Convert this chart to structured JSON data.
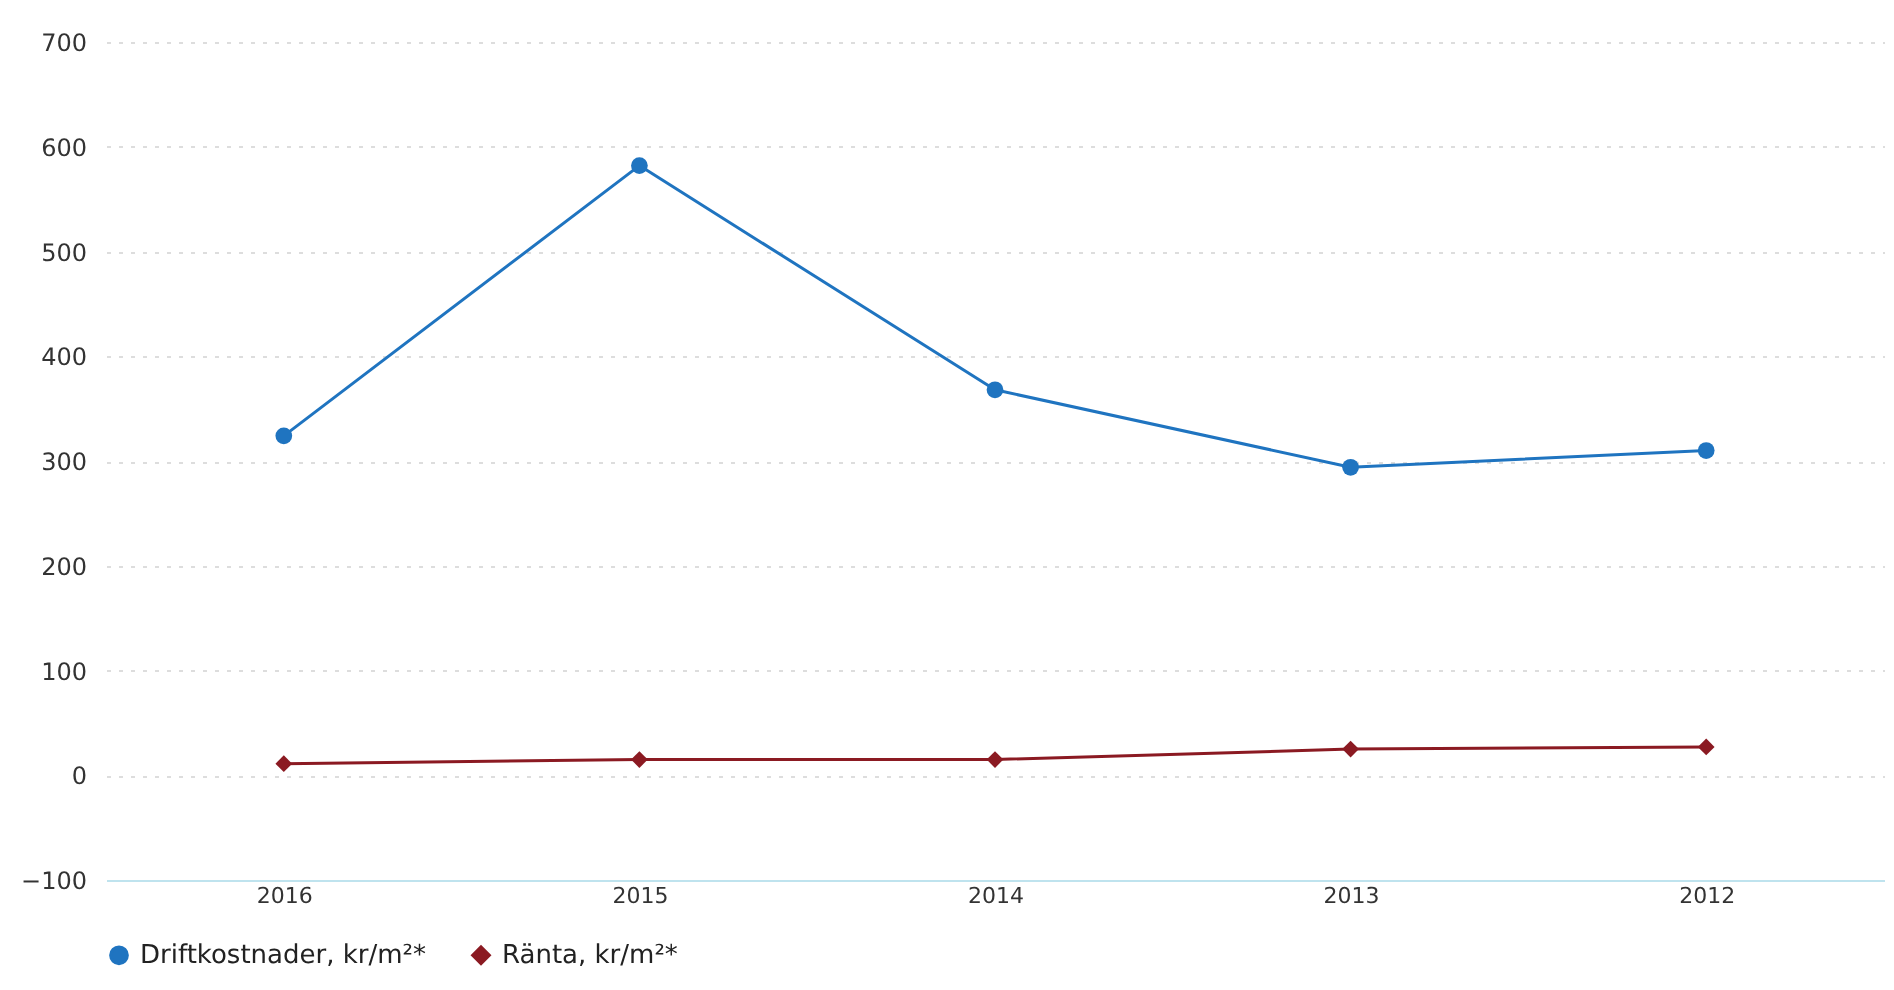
{
  "chart_data": {
    "type": "line",
    "categories": [
      "2016",
      "2015",
      "2014",
      "2013",
      "2012"
    ],
    "series": [
      {
        "name": "Driftkostnader, kr/m²*",
        "color": "#1f74c0",
        "marker": "circle",
        "values": [
          324,
          582,
          368,
          294,
          310
        ]
      },
      {
        "name": "Ränta, kr/m²*",
        "color": "#8b1a22",
        "marker": "diamond",
        "values": [
          11,
          15,
          15,
          25,
          27
        ]
      }
    ],
    "ylim": [
      -100,
      700
    ],
    "yticks": [
      -100,
      0,
      100,
      200,
      300,
      400,
      500,
      600,
      700
    ],
    "grid": "y",
    "legend": "bottom"
  }
}
